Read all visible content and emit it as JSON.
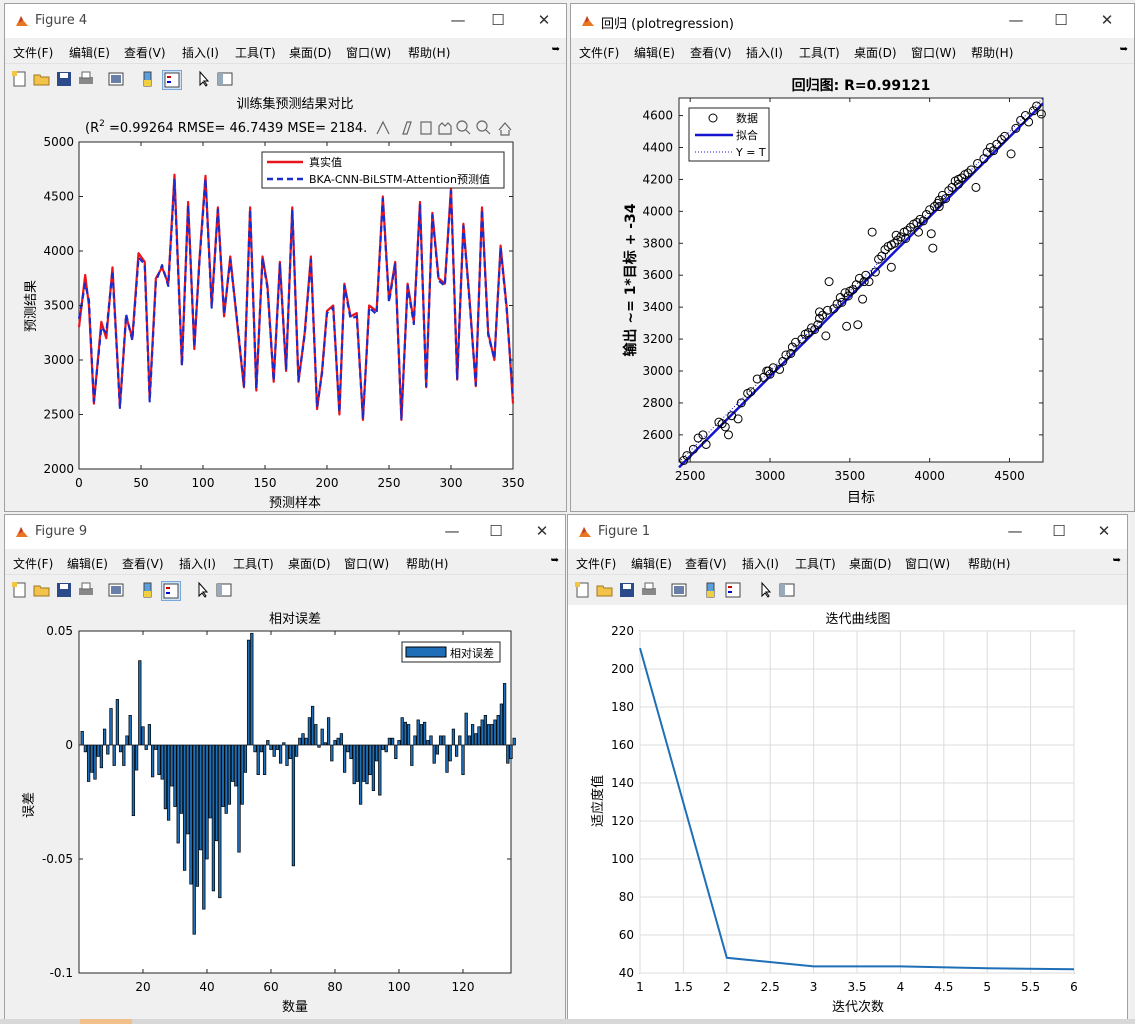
{
  "menus": [
    "文件(F)",
    "编辑(E)",
    "查看(V)",
    "插入(I)",
    "工具(T)",
    "桌面(D)",
    "窗口(W)",
    "帮助(H)"
  ],
  "colors": {
    "real": "#e8141c",
    "pred": "#1a2ccc",
    "bar": "#1f6fb8",
    "fit": "#1414d0",
    "curve": "#1f6fb8"
  },
  "fig4": {
    "window_title": "Figure 4",
    "title": "训练集预测结果对比",
    "subtitle_prefix": "(R",
    "subtitle_sup": "2",
    "subtitle_rest": " =0.99264 RMSE= 46.7439 MSE= 2184.",
    "xlabel": "预测样本",
    "ylabel": "预测结果",
    "legend": [
      "真实值",
      "BKA-CNN-BiLSTM-Attention预测值"
    ],
    "chart_data": {
      "type": "line",
      "title": "训练集预测结果对比",
      "xlabel": "预测样本",
      "ylabel": "预测结果",
      "xlim": [
        0,
        350
      ],
      "ylim": [
        2000,
        5000
      ],
      "xticks": [
        0,
        50,
        100,
        150,
        200,
        250,
        300,
        350
      ],
      "yticks": [
        2000,
        2500,
        3000,
        3500,
        4000,
        4500,
        5000
      ],
      "x": [
        0,
        5,
        8,
        12,
        18,
        22,
        27,
        33,
        38,
        43,
        48,
        53,
        57,
        62,
        67,
        72,
        77,
        83,
        88,
        93,
        97,
        102,
        107,
        112,
        117,
        122,
        127,
        133,
        138,
        143,
        148,
        152,
        157,
        162,
        167,
        172,
        177,
        182,
        187,
        192,
        196,
        200,
        205,
        210,
        214,
        219,
        224,
        229,
        234,
        240,
        245,
        250,
        255,
        260,
        265,
        270,
        275,
        280,
        285,
        290,
        295,
        300,
        305,
        310,
        315,
        320,
        325,
        330,
        335,
        340,
        345,
        350
      ],
      "series": [
        {
          "name": "真实值",
          "values": [
            3300,
            3780,
            3500,
            2600,
            3350,
            3200,
            3850,
            2580,
            3400,
            3200,
            3980,
            3900,
            2650,
            3750,
            3850,
            3700,
            4700,
            2960,
            4450,
            3100,
            3900,
            4690,
            3500,
            4400,
            3400,
            3950,
            3400,
            2750,
            4400,
            2720,
            3950,
            3680,
            2800,
            3900,
            2900,
            4400,
            2800,
            3250,
            3950,
            2550,
            2900,
            3450,
            3500,
            2500,
            3700,
            3400,
            3430,
            2450,
            3500,
            3450,
            4500,
            3550,
            3900,
            2450,
            3700,
            3350,
            4450,
            2750,
            4350,
            3750,
            3700,
            4580,
            2820,
            4250,
            3550,
            2760,
            4400,
            3250,
            3000,
            4050,
            3470,
            2600
          ]
        },
        {
          "name": "BKA-CNN-BiLSTM-Attention预测值",
          "values": [
            3380,
            3700,
            3550,
            2620,
            3300,
            3250,
            3820,
            2560,
            3420,
            3180,
            3940,
            3880,
            2620,
            3720,
            3870,
            3680,
            4650,
            2950,
            4420,
            3120,
            3880,
            4660,
            3480,
            4380,
            3420,
            3920,
            3420,
            2760,
            4380,
            2740,
            3930,
            3660,
            2810,
            3880,
            2920,
            4380,
            2810,
            3230,
            3920,
            2570,
            2880,
            3430,
            3480,
            2520,
            3680,
            3380,
            3400,
            2460,
            3480,
            3420,
            4480,
            3530,
            3880,
            2460,
            3680,
            3330,
            4420,
            2760,
            4330,
            3730,
            3680,
            4550,
            2830,
            4230,
            3530,
            2770,
            4380,
            3230,
            3010,
            4030,
            3450,
            2650
          ]
        }
      ]
    }
  },
  "reg": {
    "window_title": "回归 (plotregression)",
    "title": "回归图: R=0.99121",
    "xlabel": "目标",
    "ylabel": "输出 ~= 1*目标 + -34",
    "legend": [
      "数据",
      "拟合",
      "Y = T"
    ],
    "chart_data": {
      "type": "scatter",
      "title": "回归图: R=0.99121",
      "xlabel": "目标",
      "ylabel": "输出 ~= 1*目标 + -34",
      "xlim": [
        2430,
        4710
      ],
      "ylim": [
        2430,
        4710
      ],
      "xticks": [
        2500,
        3000,
        3500,
        4000,
        4500
      ],
      "yticks": [
        2600,
        2800,
        3000,
        3200,
        3400,
        3600,
        3800,
        4000,
        4200,
        4400,
        4600
      ],
      "fit": {
        "slope": 1,
        "intercept": -34
      },
      "points": [
        [
          2460,
          2440
        ],
        [
          2480,
          2470
        ],
        [
          2520,
          2510
        ],
        [
          2550,
          2580
        ],
        [
          2580,
          2600
        ],
        [
          2600,
          2540
        ],
        [
          2680,
          2680
        ],
        [
          2700,
          2670
        ],
        [
          2720,
          2650
        ],
        [
          2740,
          2600
        ],
        [
          2760,
          2720
        ],
        [
          2800,
          2700
        ],
        [
          2820,
          2800
        ],
        [
          2860,
          2860
        ],
        [
          2880,
          2870
        ],
        [
          2920,
          2950
        ],
        [
          2960,
          2960
        ],
        [
          2980,
          3000
        ],
        [
          3000,
          2980
        ],
        [
          3020,
          3020
        ],
        [
          3060,
          3010
        ],
        [
          3080,
          3060
        ],
        [
          3100,
          3100
        ],
        [
          3140,
          3150
        ],
        [
          3160,
          3180
        ],
        [
          3200,
          3200
        ],
        [
          3220,
          3230
        ],
        [
          3240,
          3240
        ],
        [
          3260,
          3270
        ],
        [
          3280,
          3260
        ],
        [
          3300,
          3290
        ],
        [
          3310,
          3330
        ],
        [
          3330,
          3350
        ],
        [
          3350,
          3220
        ],
        [
          3360,
          3380
        ],
        [
          3400,
          3390
        ],
        [
          3420,
          3420
        ],
        [
          3440,
          3460
        ],
        [
          3450,
          3430
        ],
        [
          3470,
          3490
        ],
        [
          3480,
          3280
        ],
        [
          3490,
          3470
        ],
        [
          3500,
          3500
        ],
        [
          3520,
          3510
        ],
        [
          3540,
          3540
        ],
        [
          3550,
          3290
        ],
        [
          3560,
          3580
        ],
        [
          3580,
          3450
        ],
        [
          3590,
          3560
        ],
        [
          3600,
          3600
        ],
        [
          3620,
          3560
        ],
        [
          3640,
          3870
        ],
        [
          3660,
          3620
        ],
        [
          3680,
          3700
        ],
        [
          3700,
          3720
        ],
        [
          3720,
          3760
        ],
        [
          3740,
          3780
        ],
        [
          3760,
          3790
        ],
        [
          3780,
          3800
        ],
        [
          3790,
          3850
        ],
        [
          3800,
          3820
        ],
        [
          3820,
          3840
        ],
        [
          3840,
          3870
        ],
        [
          3860,
          3880
        ],
        [
          3880,
          3900
        ],
        [
          3900,
          3920
        ],
        [
          3920,
          3930
        ],
        [
          3940,
          3950
        ],
        [
          3960,
          3940
        ],
        [
          3980,
          3980
        ],
        [
          4000,
          4010
        ],
        [
          4010,
          3860
        ],
        [
          4020,
          3770
        ],
        [
          4030,
          4030
        ],
        [
          4050,
          4050
        ],
        [
          4060,
          4070
        ],
        [
          4080,
          4100
        ],
        [
          4100,
          4080
        ],
        [
          4120,
          4130
        ],
        [
          4140,
          4150
        ],
        [
          4160,
          4190
        ],
        [
          4180,
          4200
        ],
        [
          4200,
          4210
        ],
        [
          4220,
          4230
        ],
        [
          4260,
          4260
        ],
        [
          4290,
          4150
        ],
        [
          4300,
          4300
        ],
        [
          4340,
          4330
        ],
        [
          4360,
          4370
        ],
        [
          4380,
          4400
        ],
        [
          4400,
          4380
        ],
        [
          4420,
          4420
        ],
        [
          4450,
          4450
        ],
        [
          4470,
          4470
        ],
        [
          4510,
          4360
        ],
        [
          4540,
          4520
        ],
        [
          4570,
          4570
        ],
        [
          4600,
          4600
        ],
        [
          4620,
          4560
        ],
        [
          4650,
          4630
        ],
        [
          4670,
          4660
        ],
        [
          4700,
          4610
        ],
        [
          3370,
          3560
        ],
        [
          3760,
          3650
        ],
        [
          4240,
          4240
        ],
        [
          4060,
          4030
        ],
        [
          3850,
          3830
        ],
        [
          3130,
          3110
        ],
        [
          2990,
          3000
        ],
        [
          4180,
          4170
        ],
        [
          3930,
          3870
        ],
        [
          3310,
          3370
        ]
      ]
    }
  },
  "fig9": {
    "window_title": "Figure 9",
    "title": "相对误差",
    "xlabel": "数量",
    "ylabel": "误差",
    "legend": [
      "相对误差"
    ],
    "chart_data": {
      "type": "bar",
      "title": "相对误差",
      "xlabel": "数量",
      "ylabel": "误差",
      "xlim": [
        0,
        135
      ],
      "ylim": [
        -0.1,
        0.05
      ],
      "xticks": [
        20,
        40,
        60,
        80,
        100,
        120
      ],
      "yticks": [
        -0.1,
        -0.05,
        0,
        0.05
      ],
      "values": [
        0.006,
        -0.003,
        -0.016,
        -0.012,
        -0.015,
        -0.005,
        -0.01,
        0.007,
        -0.004,
        0.016,
        -0.009,
        0.02,
        -0.003,
        -0.009,
        0.004,
        0.013,
        -0.031,
        -0.011,
        0.037,
        0.008,
        -0.002,
        0.009,
        -0.014,
        -0.002,
        -0.013,
        -0.015,
        -0.028,
        -0.033,
        -0.018,
        -0.027,
        -0.043,
        -0.03,
        -0.055,
        -0.039,
        -0.061,
        -0.083,
        -0.062,
        -0.046,
        -0.072,
        -0.05,
        -0.032,
        -0.064,
        -0.042,
        -0.067,
        -0.027,
        -0.03,
        -0.026,
        -0.016,
        -0.018,
        -0.047,
        -0.026,
        -0.012,
        0.046,
        0.049,
        -0.003,
        -0.013,
        -0.003,
        -0.013,
        0.002,
        -0.002,
        -0.005,
        -0.002,
        -0.008,
        0.001,
        -0.009,
        -0.006,
        -0.053,
        -0.005,
        0.003,
        0.005,
        0.003,
        0.012,
        0.017,
        0.009,
        -0.001,
        0.007,
        0.001,
        0.012,
        -0.007,
        0.002,
        0.003,
        0.005,
        -0.012,
        -0.003,
        -0.006,
        -0.017,
        -0.016,
        -0.026,
        -0.016,
        -0.017,
        -0.013,
        -0.02,
        -0.007,
        -0.022,
        -0.002,
        -0.003,
        0.003,
        0.003,
        -0.006,
        0.002,
        0.012,
        0.01,
        0.009,
        -0.009,
        0.004,
        0.011,
        0.009,
        0.01,
        0.002,
        0.004,
        -0.008,
        -0.004,
        0.004,
        0.004,
        -0.012,
        -0.007,
        0.007,
        -0.005,
        0.004,
        -0.013,
        0.014,
        0.004,
        0.009,
        0.005,
        0.008,
        0.011,
        0.013,
        0.009,
        0.009,
        0.011,
        0.013,
        0.018,
        0.027,
        -0.008,
        -0.006,
        0.003
      ]
    }
  },
  "fig1": {
    "window_title": "Figure 1",
    "title": "迭代曲线图",
    "xlabel": "迭代次数",
    "ylabel": "适应度值",
    "chart_data": {
      "type": "line",
      "title": "迭代曲线图",
      "xlabel": "迭代次数",
      "ylabel": "适应度值",
      "grid": true,
      "xlim": [
        1,
        6
      ],
      "ylim": [
        40,
        220
      ],
      "xticks": [
        1,
        1.5,
        2,
        2.5,
        3,
        3.5,
        4,
        4.5,
        5,
        5.5,
        6
      ],
      "yticks": [
        40,
        60,
        80,
        100,
        120,
        140,
        160,
        180,
        200,
        220
      ],
      "x": [
        1,
        2,
        3,
        4,
        5,
        6
      ],
      "values": [
        211,
        48,
        43.5,
        43.5,
        42.5,
        42
      ]
    }
  }
}
